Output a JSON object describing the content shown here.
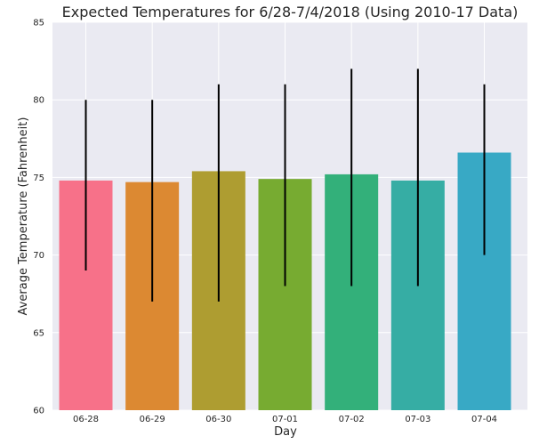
{
  "chart_data": {
    "type": "bar",
    "title": "Expected Temperatures for 6/28-7/4/2018 (Using 2010-17 Data)",
    "xlabel": "Day",
    "ylabel": "Average Temperature (Fahrenheit)",
    "ylim": [
      60,
      85
    ],
    "yticks": [
      60,
      65,
      70,
      75,
      80,
      85
    ],
    "grid": true,
    "categories": [
      "06-28",
      "06-29",
      "06-30",
      "07-01",
      "07-02",
      "07-03",
      "07-04"
    ],
    "values": [
      74.8,
      74.7,
      75.4,
      74.9,
      75.2,
      74.8,
      76.6
    ],
    "error_low": [
      69,
      67,
      67,
      68,
      68,
      68,
      70
    ],
    "error_high": [
      80,
      80,
      81,
      81,
      82,
      82,
      81
    ],
    "colors": [
      "#f77189",
      "#dc8932",
      "#ae9d31",
      "#77ab31",
      "#33b07a",
      "#36ada4",
      "#38a9c5"
    ],
    "plot_background": "#eaeaf2"
  }
}
